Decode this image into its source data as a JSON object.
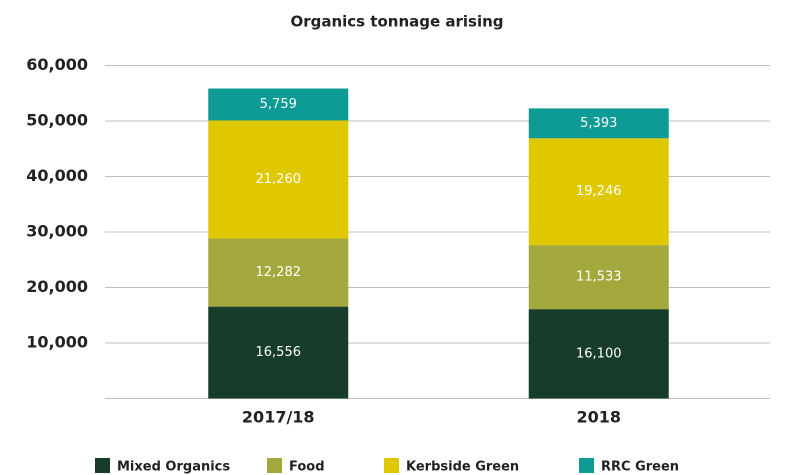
{
  "chart_data": {
    "type": "stacked_bar",
    "title": "Organics tonnage arising",
    "categories": [
      "2017/18",
      "2018"
    ],
    "series": [
      {
        "name": "Mixed Organics",
        "color": "#173d2a",
        "values": [
          16556,
          16100
        ],
        "value_labels": [
          "16,556",
          "16,100"
        ]
      },
      {
        "name": "Food",
        "color": "#a3a83c",
        "values": [
          12282,
          11533
        ],
        "value_labels": [
          "12,282",
          "11,533"
        ]
      },
      {
        "name": "Kerbside Green",
        "color": "#e0c800",
        "values": [
          21260,
          19246
        ],
        "value_labels": [
          "21,260",
          "19,246"
        ]
      },
      {
        "name": "RRC Green",
        "color": "#0e9b96",
        "values": [
          5759,
          5393
        ],
        "value_labels": [
          "5,759",
          "5,393"
        ]
      }
    ],
    "ylim": [
      0,
      60000
    ],
    "yticks": [
      {
        "value": 10000,
        "label": "10,000"
      },
      {
        "value": 20000,
        "label": "20,000"
      },
      {
        "value": 30000,
        "label": "30,000"
      },
      {
        "value": 40000,
        "label": "40,000"
      },
      {
        "value": 50000,
        "label": "50,000"
      },
      {
        "value": 60000,
        "label": "60,000"
      }
    ],
    "grid": true,
    "legend": "bottom"
  }
}
